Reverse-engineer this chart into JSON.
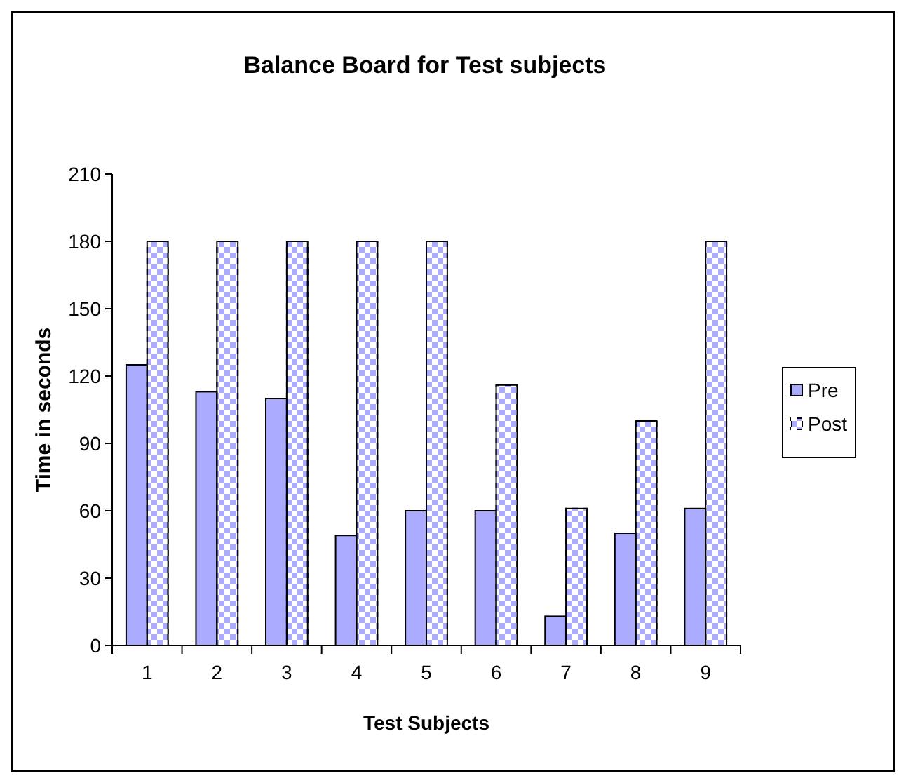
{
  "chart_data": {
    "type": "bar",
    "title": "Balance Board for Test subjects",
    "xlabel": "Test Subjects",
    "ylabel": "Time in seconds",
    "categories": [
      "1",
      "2",
      "3",
      "4",
      "5",
      "6",
      "7",
      "8",
      "9"
    ],
    "series": [
      {
        "name": "Pre",
        "color": "#aaaaff",
        "values": [
          125,
          113,
          110,
          49,
          60,
          60,
          13,
          50,
          61
        ]
      },
      {
        "name": "Post",
        "color": "#aaaaff",
        "values": [
          180,
          180,
          180,
          180,
          180,
          116,
          61,
          100,
          180
        ]
      }
    ],
    "ylim": [
      0,
      210
    ],
    "yticks": [
      0,
      30,
      60,
      90,
      120,
      150,
      180,
      210
    ],
    "grid": false,
    "legend": "right"
  }
}
